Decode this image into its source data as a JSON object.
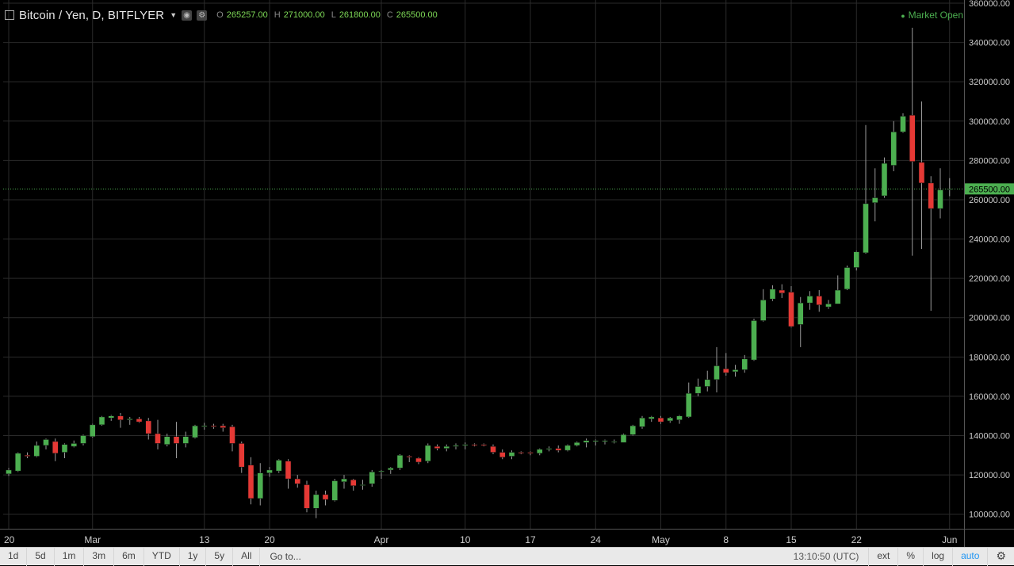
{
  "header": {
    "title": "Bitcoin / Yen, D, BITFLYER",
    "open_label": "O",
    "open": "265257.00",
    "high_label": "H",
    "high": "271000.00",
    "low_label": "L",
    "low": "261800.00",
    "close_label": "C",
    "close": "265500.00",
    "caret_icon": "caret-down-icon",
    "settings_icons": [
      "visibility-icon",
      "settings-icon"
    ]
  },
  "market_status": "Market Open",
  "colors": {
    "up": "#4caf50",
    "down": "#e53935",
    "last_price": "#4caf50",
    "grid": "#2a2a2a",
    "axis_text": "#cccccc"
  },
  "chart_data": {
    "type": "candlestick",
    "title": "Bitcoin / Yen, D, BITFLYER",
    "ylim": [
      91000,
      360000
    ],
    "y_ticks": [
      100000,
      120000,
      140000,
      160000,
      180000,
      200000,
      220000,
      240000,
      260000,
      280000,
      300000,
      320000,
      340000,
      360000
    ],
    "y_tick_labels": [
      "100000.00",
      "120000.00",
      "140000.00",
      "160000.00",
      "180000.00",
      "200000.00",
      "220000.00",
      "240000.00",
      "260000.00",
      "280000.00",
      "300000.00",
      "320000.00",
      "340000.00",
      "360000.00"
    ],
    "x_ticks": [
      {
        "label": "20",
        "index": 0
      },
      {
        "label": "Mar",
        "index": 9
      },
      {
        "label": "13",
        "index": 21
      },
      {
        "label": "20",
        "index": 28
      },
      {
        "label": "Apr",
        "index": 40
      },
      {
        "label": "10",
        "index": 49
      },
      {
        "label": "17",
        "index": 56
      },
      {
        "label": "24",
        "index": 63
      },
      {
        "label": "May",
        "index": 70
      },
      {
        "label": "8",
        "index": 77
      },
      {
        "label": "15",
        "index": 84
      },
      {
        "label": "22",
        "index": 91
      },
      {
        "label": "Jun",
        "index": 101
      }
    ],
    "last_price": 265500,
    "last_price_label": "265500.00",
    "grid": true,
    "candles": [
      [
        120500,
        123500,
        119500,
        122500
      ],
      [
        122000,
        131500,
        121500,
        131000
      ],
      [
        130000,
        131500,
        128500,
        129500
      ],
      [
        129500,
        137000,
        129000,
        135000
      ],
      [
        135000,
        138500,
        133000,
        138000
      ],
      [
        137000,
        138500,
        127000,
        131000
      ],
      [
        131500,
        136000,
        128500,
        135500
      ],
      [
        134500,
        137500,
        134000,
        136000
      ],
      [
        136000,
        140500,
        135000,
        140000
      ],
      [
        139500,
        146000,
        139000,
        145500
      ],
      [
        145500,
        150000,
        145000,
        149500
      ],
      [
        149000,
        150500,
        147500,
        150000
      ],
      [
        150000,
        151500,
        144000,
        148000
      ],
      [
        148000,
        149500,
        145500,
        148500
      ],
      [
        148500,
        149500,
        146500,
        147000
      ],
      [
        147500,
        149000,
        138000,
        141000
      ],
      [
        141000,
        148000,
        133000,
        136000
      ],
      [
        135500,
        141000,
        134500,
        139500
      ],
      [
        139500,
        147000,
        128500,
        136000
      ],
      [
        136000,
        142000,
        134000,
        139500
      ],
      [
        139000,
        145500,
        138500,
        145000
      ],
      [
        144500,
        146500,
        143000,
        145000
      ],
      [
        145000,
        146000,
        143500,
        144500
      ],
      [
        145000,
        146000,
        142000,
        144000
      ],
      [
        144500,
        145500,
        132000,
        136000
      ],
      [
        136000,
        137000,
        121000,
        124000
      ],
      [
        125000,
        129000,
        105000,
        108000
      ],
      [
        108000,
        126000,
        104500,
        121000
      ],
      [
        121000,
        124000,
        119000,
        122500
      ],
      [
        122000,
        128000,
        121000,
        127500
      ],
      [
        127000,
        128000,
        113000,
        118000
      ],
      [
        118000,
        120000,
        113500,
        115500
      ],
      [
        115000,
        117000,
        101000,
        103000
      ],
      [
        103000,
        112000,
        98000,
        110000
      ],
      [
        110000,
        112000,
        104500,
        107500
      ],
      [
        107000,
        118000,
        106500,
        117000
      ],
      [
        116500,
        120000,
        113000,
        118000
      ],
      [
        117500,
        118000,
        112000,
        114500
      ],
      [
        115000,
        117500,
        112500,
        115000
      ],
      [
        115500,
        122500,
        114000,
        121500
      ],
      [
        121500,
        122500,
        118000,
        122000
      ],
      [
        122500,
        124000,
        120500,
        123500
      ],
      [
        123500,
        130500,
        122500,
        130000
      ],
      [
        129500,
        130000,
        126500,
        129000
      ],
      [
        128500,
        129000,
        125500,
        126500
      ],
      [
        127000,
        136000,
        126000,
        135000
      ],
      [
        134500,
        135500,
        132500,
        133500
      ],
      [
        133500,
        135500,
        132000,
        134500
      ],
      [
        134500,
        136000,
        133000,
        135000
      ],
      [
        135000,
        136500,
        133000,
        135500
      ],
      [
        135500,
        136000,
        134500,
        135000
      ],
      [
        135500,
        136000,
        134500,
        135000
      ],
      [
        134500,
        135500,
        130500,
        131500
      ],
      [
        131500,
        133000,
        128000,
        129000
      ],
      [
        129500,
        132500,
        128000,
        131500
      ],
      [
        131500,
        132000,
        130500,
        131000
      ],
      [
        131500,
        132000,
        130000,
        131000
      ],
      [
        131000,
        133500,
        130000,
        133000
      ],
      [
        133000,
        134500,
        132000,
        133500
      ],
      [
        133500,
        135000,
        131500,
        132500
      ],
      [
        132500,
        135500,
        132000,
        135000
      ],
      [
        135000,
        137000,
        134500,
        136500
      ],
      [
        136500,
        138500,
        134000,
        137500
      ],
      [
        137000,
        138000,
        135000,
        137500
      ],
      [
        137000,
        138000,
        135500,
        137500
      ],
      [
        137000,
        138000,
        136000,
        137000
      ],
      [
        136500,
        141000,
        136500,
        140500
      ],
      [
        140500,
        145500,
        140000,
        145000
      ],
      [
        144500,
        150000,
        143500,
        149000
      ],
      [
        148500,
        150000,
        147000,
        149500
      ],
      [
        149000,
        150000,
        146000,
        147000
      ],
      [
        147500,
        149500,
        146500,
        149000
      ],
      [
        148000,
        150500,
        146000,
        150000
      ],
      [
        149500,
        167000,
        149000,
        161500
      ],
      [
        161500,
        169000,
        160000,
        165000
      ],
      [
        165000,
        173000,
        162500,
        168500
      ],
      [
        168500,
        185000,
        162000,
        175500
      ],
      [
        174000,
        182000,
        170500,
        172000
      ],
      [
        172500,
        176000,
        170000,
        173500
      ],
      [
        173500,
        181000,
        172000,
        179000
      ],
      [
        178500,
        199500,
        178000,
        198500
      ],
      [
        198500,
        214500,
        198000,
        209000
      ],
      [
        209500,
        216500,
        208500,
        214500
      ],
      [
        214000,
        217000,
        210000,
        212500
      ],
      [
        213000,
        216000,
        195000,
        195500
      ],
      [
        196500,
        210500,
        185000,
        207500
      ],
      [
        207500,
        213500,
        204000,
        211000
      ],
      [
        211000,
        214000,
        203000,
        206500
      ],
      [
        205500,
        209000,
        204500,
        207000
      ],
      [
        207000,
        221500,
        207000,
        214000
      ],
      [
        214500,
        226500,
        214000,
        225500
      ],
      [
        225500,
        234000,
        224000,
        233500
      ],
      [
        233000,
        298000,
        232500,
        258000
      ],
      [
        258500,
        276000,
        249000,
        261000
      ],
      [
        262000,
        281500,
        261000,
        278500
      ],
      [
        277500,
        300000,
        274500,
        294500
      ],
      [
        294500,
        304000,
        294000,
        302500
      ],
      [
        303000,
        347500,
        231500,
        279500
      ],
      [
        279000,
        310000,
        235000,
        268500
      ],
      [
        268500,
        272000,
        203500,
        255500
      ],
      [
        255500,
        276000,
        250500,
        265000
      ],
      [
        265257,
        271000,
        261800,
        265500
      ]
    ]
  },
  "bottom_bar": {
    "ranges": [
      "1d",
      "5d",
      "1m",
      "3m",
      "6m",
      "YTD",
      "1y",
      "5y",
      "All"
    ],
    "goto": "Go to...",
    "time": "13:10:50 (UTC)",
    "ext": "ext",
    "percent": "%",
    "log": "log",
    "auto": "auto",
    "settings_icon": "gear-icon"
  }
}
